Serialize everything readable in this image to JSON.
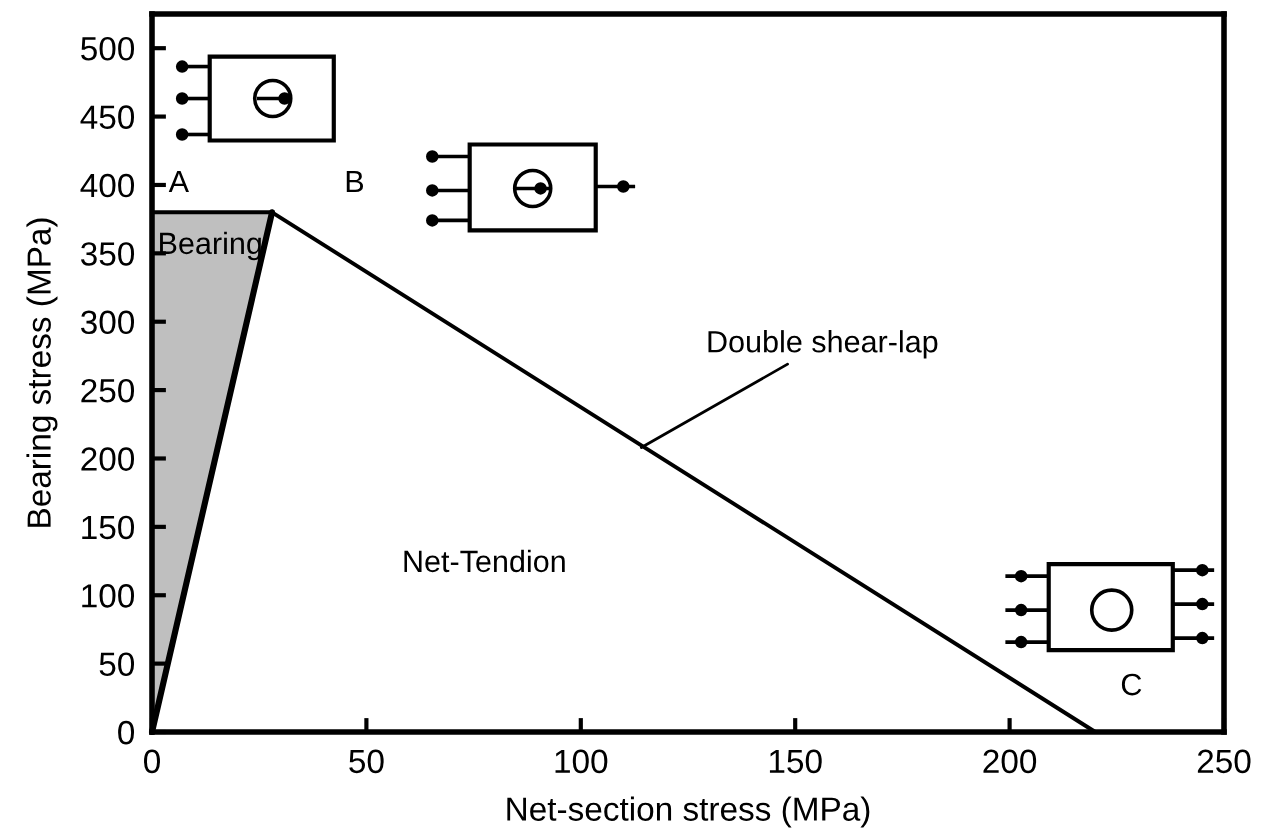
{
  "chart_data": {
    "type": "line",
    "xlabel": "Net-section stress (MPa)",
    "ylabel": "Bearing stress (MPa)",
    "xlim": [
      0,
      250
    ],
    "xticks": [
      0,
      50,
      100,
      150,
      200,
      250
    ],
    "ylim": [
      0,
      525
    ],
    "yticks": [
      0,
      50,
      100,
      150,
      200,
      250,
      300,
      350,
      400,
      450,
      500
    ],
    "series": [
      {
        "color": "#000000",
        "x": [
          0,
          28
        ],
        "values": [
          0,
          380
        ],
        "lower": [
          0,
          380
        ],
        "upper": [
          380,
          380
        ]
      },
      {
        "color": "#000000",
        "x": [
          0,
          28,
          220
        ],
        "values": [
          380,
          380,
          0
        ]
      }
    ],
    "annotations": [
      {
        "text": "A",
        "x": 0,
        "y": 380
      },
      {
        "text": "B",
        "x": 28,
        "y": 380
      },
      {
        "text": "C",
        "x": 220,
        "y": 0
      },
      {
        "text": "Bearing",
        "x": 0,
        "y": 380
      },
      "Net-Tendion",
      {
        "text": "Double shear-lap",
        "x": 113,
        "y": 206
      }
    ]
  }
}
